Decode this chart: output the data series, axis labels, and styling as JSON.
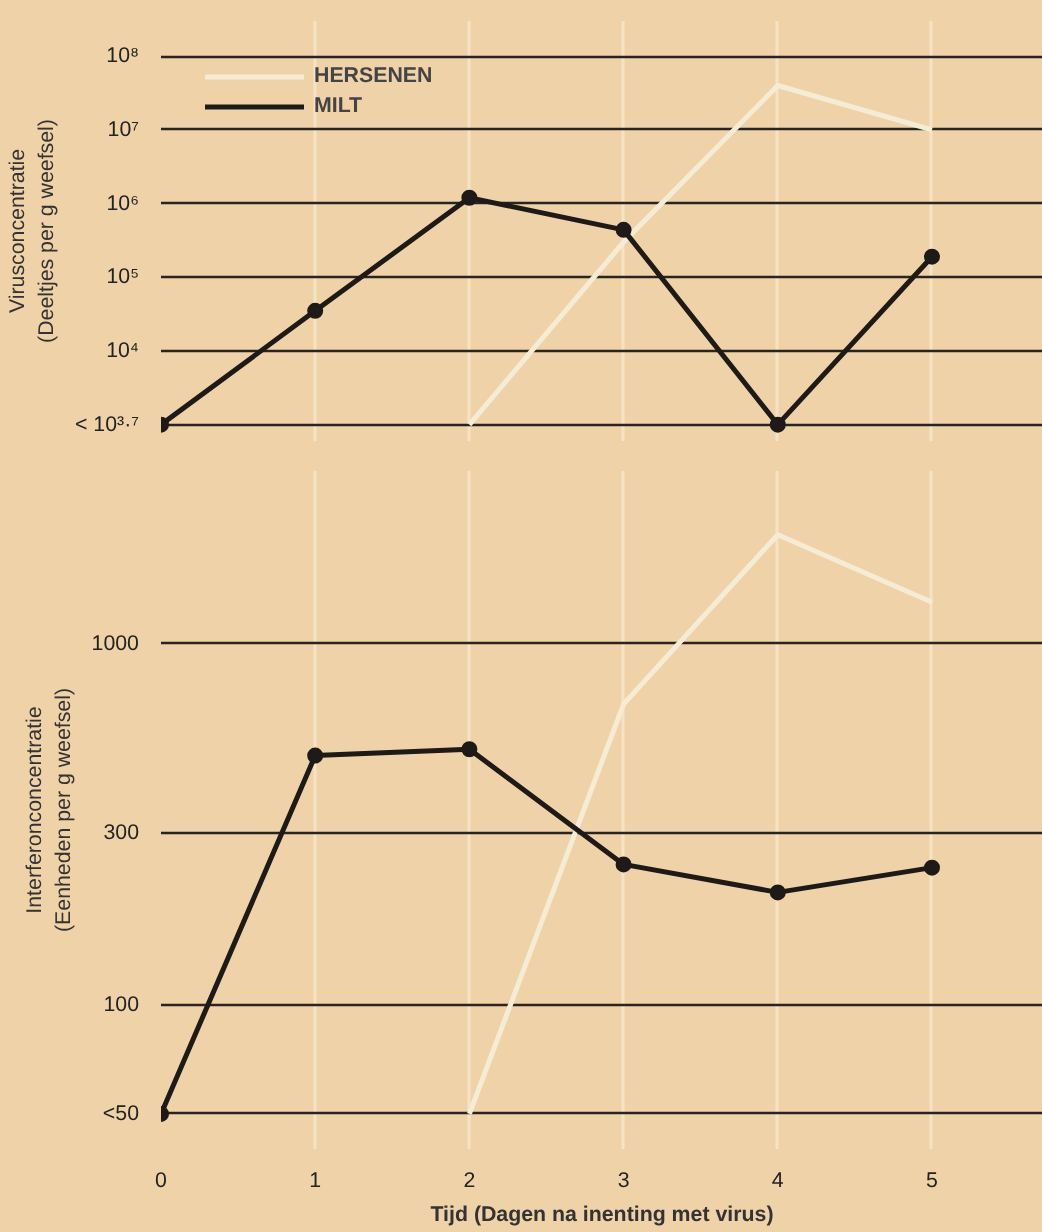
{
  "chart_data": [
    {
      "type": "line",
      "ylabel": "Virusconcentratie\n(Deeltjes per g weefsel)",
      "log": "y",
      "xlim": [
        0,
        5.72
      ],
      "ylim": [
        600,
        300000000
      ],
      "yticks": [
        {
          "value": 1000,
          "label": "< 10³·⁷"
        },
        {
          "value": 10000,
          "label": "10⁴"
        },
        {
          "value": 100000,
          "label": "10⁵"
        },
        {
          "value": 1000000,
          "label": "10⁶"
        },
        {
          "value": 10000000,
          "label": "10⁷"
        },
        {
          "value": 100000000,
          "label": "10⁸"
        }
      ],
      "xticks": [
        0,
        1,
        2,
        3,
        4,
        5
      ],
      "tick_labels": "y",
      "grid": true,
      "legend": "top left",
      "series": [
        {
          "name": "HERSENEN",
          "color": "#f5ecd6",
          "marker": "none",
          "x": [
            2,
            3,
            4,
            5
          ],
          "values": [
            1000,
            300000,
            40000000,
            10000000
          ]
        },
        {
          "name": "MILT",
          "color": "#1e1a18",
          "marker": "circle",
          "x": [
            0,
            1,
            2,
            3,
            4,
            5
          ],
          "values": [
            1000,
            35000,
            1200000,
            440000,
            1000,
            190000
          ]
        }
      ]
    },
    {
      "type": "line",
      "ylabel": "Interferonconcentratie\n(Eenheden per g weefsel)",
      "xlabel": "Tijd (Dagen na inenting met virus)",
      "log": "y",
      "xlim": [
        0,
        5.72
      ],
      "ylim": [
        40,
        3000
      ],
      "yticks": [
        {
          "value": 50,
          "label": "<50"
        },
        100,
        300,
        1000
      ],
      "xticks": [
        0,
        1,
        2,
        3,
        4,
        5
      ],
      "grid": true,
      "series": [
        {
          "color": "#f5ecd6",
          "marker": "none",
          "x": [
            2,
            3,
            4,
            5
          ],
          "values": [
            50,
            680,
            2000,
            1300
          ]
        },
        {
          "color": "#1e1a18",
          "marker": "circle",
          "x": [
            0,
            1,
            2,
            3,
            4,
            5
          ],
          "values": [
            50,
            490,
            510,
            245,
            205,
            240
          ]
        }
      ]
    }
  ]
}
